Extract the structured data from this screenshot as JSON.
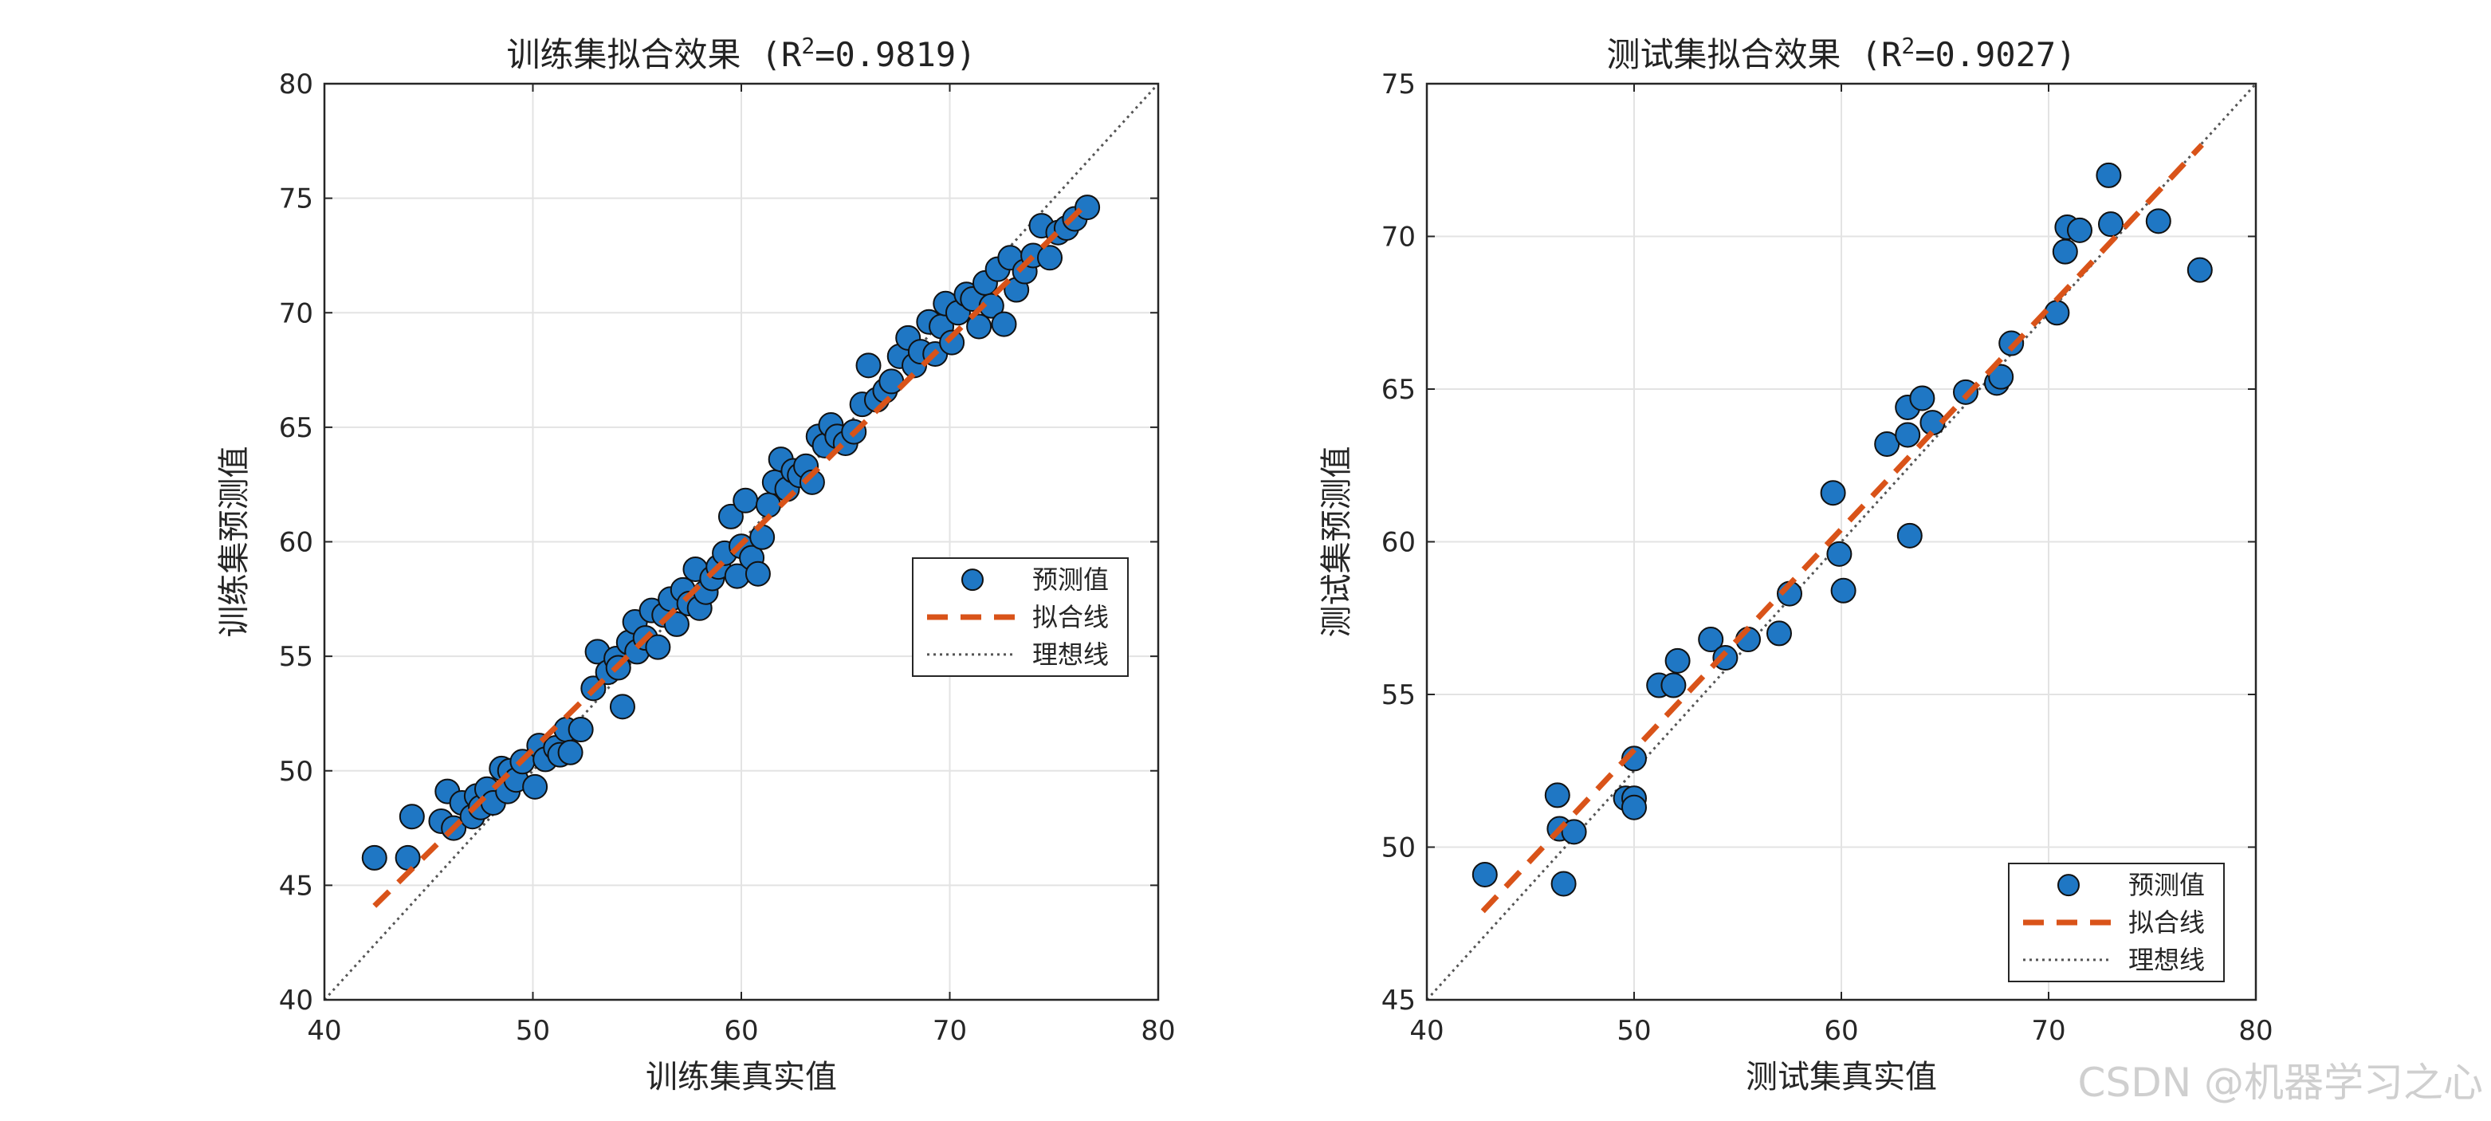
{
  "watermark": "CSDN @机器学习之心",
  "chart_data": [
    {
      "type": "scatter",
      "title": "训练集拟合效果 (R",
      "title_sup": "2",
      "title_tail": "=0.9819)",
      "xlabel": "训练集真实值",
      "ylabel": "训练集预测值",
      "xlim": [
        40,
        80
      ],
      "ylim": [
        40,
        80
      ],
      "xticks": [
        40,
        50,
        60,
        70,
        80
      ],
      "yticks": [
        40,
        45,
        50,
        55,
        60,
        65,
        70,
        75,
        80
      ],
      "grid": true,
      "legend_position": "right",
      "legend": [
        "预测值",
        "拟合线",
        "理想线"
      ],
      "colors": {
        "points": "#1f77c4",
        "fit": "#d95319",
        "ideal": "#555555"
      },
      "fit_line": {
        "x": [
          42.4,
          76.6
        ],
        "y": [
          44.1,
          74.8
        ]
      },
      "ideal_line": {
        "x": [
          40,
          80
        ],
        "y": [
          40,
          80
        ]
      },
      "series": [
        {
          "name": "预测值",
          "x": [
            42.4,
            44.0,
            44.2,
            45.6,
            45.9,
            46.2,
            46.6,
            47.1,
            47.3,
            47.5,
            47.8,
            48.1,
            48.5,
            48.8,
            48.9,
            49.2,
            49.5,
            50.1,
            50.3,
            50.6,
            51.1,
            51.3,
            51.6,
            51.8,
            52.3,
            52.9,
            53.1,
            53.6,
            54.0,
            54.3,
            54.1,
            54.6,
            54.9,
            55.0,
            55.4,
            55.7,
            56.0,
            56.3,
            56.6,
            56.9,
            57.2,
            57.5,
            57.8,
            58.0,
            58.3,
            58.6,
            58.9,
            59.2,
            59.5,
            59.8,
            60.0,
            60.2,
            60.5,
            60.8,
            61.0,
            61.3,
            61.6,
            61.9,
            62.2,
            62.5,
            62.8,
            63.1,
            63.4,
            63.7,
            64.0,
            64.3,
            64.6,
            65.0,
            65.4,
            65.8,
            66.1,
            66.5,
            66.9,
            67.2,
            67.6,
            68.0,
            68.3,
            68.6,
            69.0,
            69.3,
            69.6,
            69.8,
            70.1,
            70.4,
            70.8,
            71.1,
            71.4,
            71.7,
            72.0,
            72.3,
            72.6,
            72.9,
            73.2,
            73.6,
            74.0,
            74.4,
            74.8,
            75.2,
            75.6,
            76.0,
            76.6
          ],
          "y": [
            46.2,
            46.2,
            48.0,
            47.8,
            49.1,
            47.5,
            48.6,
            48.0,
            48.9,
            48.4,
            49.2,
            48.6,
            50.1,
            49.1,
            50.0,
            49.6,
            50.4,
            49.3,
            51.1,
            50.5,
            51.0,
            50.7,
            51.8,
            50.8,
            51.8,
            53.6,
            55.2,
            54.3,
            54.9,
            52.8,
            54.5,
            55.6,
            56.5,
            55.2,
            55.8,
            57.0,
            55.4,
            56.8,
            57.5,
            56.4,
            57.9,
            57.3,
            58.8,
            57.1,
            57.8,
            58.4,
            58.9,
            59.5,
            61.1,
            58.5,
            59.8,
            61.8,
            59.3,
            58.6,
            60.2,
            61.6,
            62.6,
            63.6,
            62.3,
            63.1,
            62.9,
            63.3,
            62.6,
            64.6,
            64.2,
            65.1,
            64.6,
            64.3,
            64.8,
            66.0,
            67.7,
            66.2,
            66.6,
            67.0,
            68.1,
            68.9,
            67.7,
            68.3,
            69.6,
            68.2,
            69.4,
            70.4,
            68.7,
            70.0,
            70.8,
            70.6,
            69.4,
            71.3,
            70.3,
            71.9,
            69.5,
            72.4,
            71.0,
            71.8,
            72.5,
            73.8,
            72.4,
            73.5,
            73.7,
            74.1,
            74.6
          ]
        }
      ]
    },
    {
      "type": "scatter",
      "title": "测试集拟合效果 (R",
      "title_sup": "2",
      "title_tail": "=0.9027)",
      "xlabel": "测试集真实值",
      "ylabel": "测试集预测值",
      "xlim": [
        40,
        80
      ],
      "ylim": [
        45,
        75
      ],
      "xticks": [
        40,
        50,
        60,
        70,
        80
      ],
      "yticks": [
        45,
        50,
        55,
        60,
        65,
        70,
        75
      ],
      "grid": true,
      "legend_position": "bottom-right",
      "legend": [
        "预测值",
        "拟合线",
        "理想线"
      ],
      "colors": {
        "points": "#1f77c4",
        "fit": "#d95319",
        "ideal": "#555555"
      },
      "fit_line": {
        "x": [
          42.7,
          77.4
        ],
        "y": [
          47.9,
          73.0
        ]
      },
      "ideal_line": {
        "x": [
          40,
          80
        ],
        "y": [
          45,
          75
        ]
      },
      "series": [
        {
          "name": "预测值",
          "x": [
            42.8,
            46.3,
            46.4,
            46.6,
            47.1,
            49.6,
            50.0,
            50.0,
            50.0,
            51.2,
            51.9,
            52.1,
            53.7,
            54.4,
            55.5,
            57.0,
            57.5,
            59.6,
            59.9,
            60.1,
            62.2,
            63.2,
            63.2,
            63.3,
            63.9,
            64.4,
            66.0,
            67.5,
            67.7,
            68.2,
            70.4,
            70.8,
            70.9,
            71.5,
            72.9,
            73.0,
            75.3,
            77.3
          ],
          "y": [
            49.1,
            51.7,
            50.6,
            48.8,
            50.5,
            51.6,
            51.6,
            51.3,
            52.9,
            55.3,
            55.3,
            56.1,
            56.8,
            56.2,
            56.8,
            57.0,
            58.3,
            61.6,
            59.6,
            58.4,
            63.2,
            63.5,
            64.4,
            60.2,
            64.7,
            63.9,
            64.9,
            65.2,
            65.4,
            66.5,
            67.5,
            69.5,
            70.3,
            70.2,
            72.0,
            70.4,
            70.5,
            68.9
          ]
        }
      ]
    }
  ]
}
